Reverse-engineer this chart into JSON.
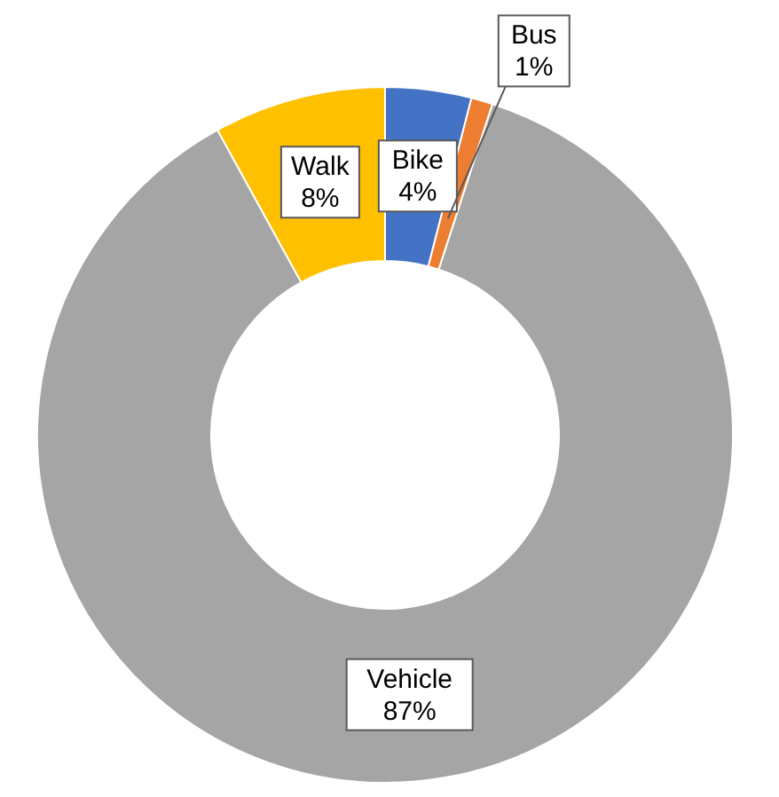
{
  "chart_data": {
    "type": "donut",
    "categories": [
      "Bike",
      "Bus",
      "Vehicle",
      "Walk"
    ],
    "values": [
      4,
      1,
      87,
      8
    ],
    "colors": [
      "#4472c4",
      "#ed7d31",
      "#a5a5a5",
      "#ffc000"
    ],
    "value_labels": [
      "4%",
      "1%",
      "87%",
      "8%"
    ],
    "legend": false
  }
}
